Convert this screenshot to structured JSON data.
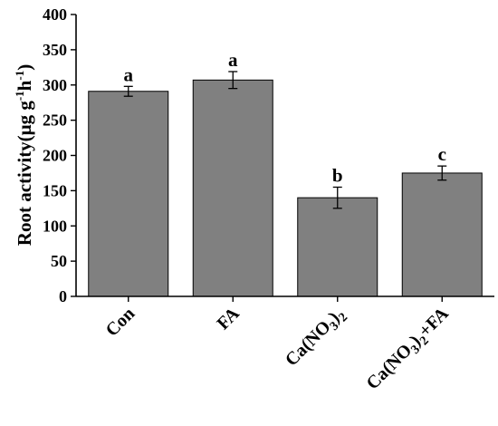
{
  "chart_data": {
    "type": "bar",
    "categories": [
      "Con",
      "FA",
      "Ca(NO3)2",
      "Ca(NO3)2+FA"
    ],
    "category_labels": [
      {
        "main": "Con"
      },
      {
        "main": "FA"
      },
      {
        "pre": "Ca(NO",
        "sub": "3",
        "post": ")",
        "sub2": "2"
      },
      {
        "pre": "Ca(NO",
        "sub": "3",
        "post": ")",
        "sub2": "2",
        "tail": "+FA"
      }
    ],
    "values": [
      291,
      307,
      140,
      175
    ],
    "errors": [
      7,
      12,
      15,
      10
    ],
    "significance": [
      "a",
      "a",
      "b",
      "c"
    ],
    "ylabel": {
      "main": "Root activity(μg g",
      "sup1": "-1",
      "mid": "h",
      "sup2": "-1",
      "end": ")"
    },
    "ylim": [
      0,
      400
    ],
    "yticks": [
      0,
      50,
      100,
      150,
      200,
      250,
      300,
      350,
      400
    ],
    "grid": false,
    "bar_color": "#808080"
  }
}
